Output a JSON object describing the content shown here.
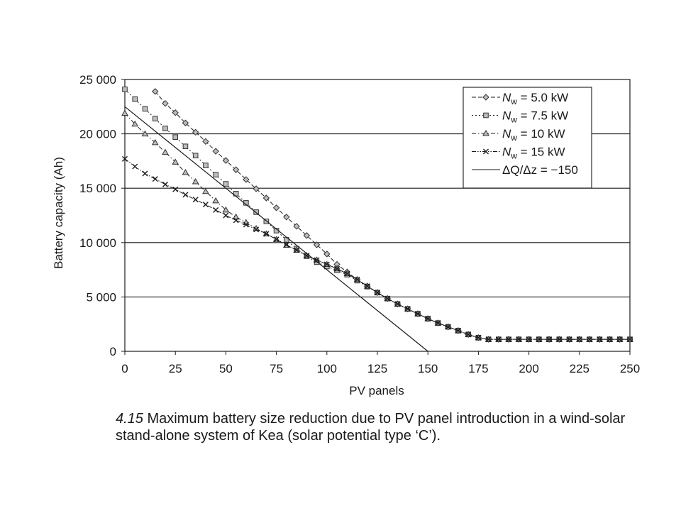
{
  "chart_data": {
    "type": "line",
    "xlabel": "PV panels",
    "ylabel": "Battery capacity (Ah)",
    "xlim": [
      0,
      250
    ],
    "ylim": [
      0,
      25000
    ],
    "x_ticks": [
      0,
      25,
      50,
      75,
      100,
      125,
      150,
      175,
      200,
      225,
      250
    ],
    "x_tick_labels": [
      "0",
      "25",
      "50",
      "75",
      "100",
      "125",
      "150",
      "175",
      "200",
      "225",
      "250"
    ],
    "y_ticks": [
      0,
      5000,
      10000,
      15000,
      20000,
      25000
    ],
    "y_tick_labels": [
      "0",
      "5 000",
      "10 000",
      "15 000",
      "20 000",
      "25 000"
    ],
    "grid": "horizontal",
    "legend_position": "top-right",
    "series": [
      {
        "name": "Nw = 5.0 kW",
        "name_parts": {
          "var": "N",
          "sub": "w",
          "rest": " = 5.0 kW"
        },
        "marker": "diamond",
        "dash": "dashed",
        "x": [
          15,
          20,
          25,
          30,
          35,
          40,
          45,
          50,
          55,
          60,
          65,
          70,
          75,
          80,
          85,
          90,
          95,
          100,
          105,
          110,
          115,
          120,
          125,
          130,
          135,
          140,
          145,
          150,
          155,
          160,
          165,
          170,
          175,
          180,
          185,
          190,
          195,
          200,
          205,
          210,
          215,
          220,
          225,
          230,
          235,
          240,
          245,
          250
        ],
        "values": [
          23900,
          22800,
          21950,
          21000,
          20150,
          19300,
          18400,
          17550,
          16700,
          15800,
          14950,
          14100,
          13200,
          12350,
          11500,
          10650,
          9800,
          8950,
          8000,
          7300,
          6600,
          6000,
          5400,
          4850,
          4350,
          3900,
          3450,
          3000,
          2600,
          2250,
          1900,
          1550,
          1250,
          1100,
          1100,
          1100,
          1100,
          1100,
          1100,
          1100,
          1100,
          1100,
          1100,
          1100,
          1100,
          1100,
          1100,
          1100
        ]
      },
      {
        "name": "Nw = 7.5 kW",
        "name_parts": {
          "var": "N",
          "sub": "w",
          "rest": " = 7.5 kW"
        },
        "marker": "square",
        "dash": "dotted",
        "x": [
          0,
          5,
          10,
          15,
          20,
          25,
          30,
          35,
          40,
          45,
          50,
          55,
          60,
          65,
          70,
          75,
          80,
          85,
          90,
          95,
          100,
          105,
          110,
          115,
          120,
          125,
          130,
          135,
          140,
          145,
          150,
          155,
          160,
          165,
          170,
          175,
          180,
          185,
          190,
          195,
          200,
          205,
          210,
          215,
          220,
          225,
          230,
          235,
          240,
          245,
          250
        ],
        "values": [
          24100,
          23200,
          22300,
          21400,
          20500,
          19700,
          18850,
          18000,
          17100,
          16250,
          15400,
          14500,
          13650,
          12800,
          11950,
          11100,
          10250,
          9450,
          8750,
          8200,
          7800,
          7450,
          7050,
          6500,
          5950,
          5400,
          4850,
          4350,
          3900,
          3450,
          3000,
          2600,
          2250,
          1900,
          1550,
          1250,
          1100,
          1100,
          1100,
          1100,
          1100,
          1100,
          1100,
          1100,
          1100,
          1100,
          1100,
          1100,
          1100,
          1100,
          1100
        ]
      },
      {
        "name": "Nw = 10 kW",
        "name_parts": {
          "var": "N",
          "sub": "w",
          "rest": " = 10 kW"
        },
        "marker": "triangle",
        "dash": "dashdot",
        "x": [
          0,
          5,
          10,
          15,
          20,
          25,
          30,
          35,
          40,
          45,
          50,
          55,
          60,
          65,
          70,
          75,
          80,
          85,
          90,
          95,
          100,
          105,
          110,
          115,
          120,
          125,
          130,
          135,
          140,
          145,
          150,
          155,
          160,
          165,
          170,
          175,
          180,
          185,
          190,
          195,
          200,
          205,
          210,
          215,
          220,
          225,
          230,
          235,
          240,
          245,
          250
        ],
        "values": [
          21900,
          20900,
          20000,
          19200,
          18300,
          17400,
          16450,
          15600,
          14700,
          13850,
          13000,
          12350,
          11850,
          11300,
          10800,
          10300,
          9750,
          9300,
          8800,
          8400,
          8000,
          7600,
          7150,
          6600,
          6000,
          5400,
          4850,
          4350,
          3900,
          3450,
          3000,
          2600,
          2250,
          1900,
          1550,
          1250,
          1100,
          1100,
          1100,
          1100,
          1100,
          1100,
          1100,
          1100,
          1100,
          1100,
          1100,
          1100,
          1100,
          1100,
          1100
        ]
      },
      {
        "name": "Nw = 15 kW",
        "name_parts": {
          "var": "N",
          "sub": "w",
          "rest": " = 15 kW"
        },
        "marker": "x",
        "dash": "dashdotdot",
        "x": [
          0,
          5,
          10,
          15,
          20,
          25,
          30,
          35,
          40,
          45,
          50,
          55,
          60,
          65,
          70,
          75,
          80,
          85,
          90,
          95,
          100,
          105,
          110,
          115,
          120,
          125,
          130,
          135,
          140,
          145,
          150,
          155,
          160,
          165,
          170,
          175,
          180,
          185,
          190,
          195,
          200,
          205,
          210,
          215,
          220,
          225,
          230,
          235,
          240,
          245,
          250
        ],
        "values": [
          17700,
          17000,
          16350,
          15850,
          15350,
          14900,
          14400,
          13950,
          13500,
          13000,
          12500,
          12050,
          11650,
          11200,
          10800,
          10300,
          9800,
          9300,
          8800,
          8400,
          8000,
          7600,
          7150,
          6600,
          6000,
          5400,
          4850,
          4350,
          3900,
          3450,
          3000,
          2600,
          2250,
          1900,
          1550,
          1250,
          1100,
          1100,
          1100,
          1100,
          1100,
          1100,
          1100,
          1100,
          1100,
          1100,
          1100,
          1100,
          1100,
          1100,
          1100
        ]
      },
      {
        "name": "ΔQ/Δz = −150",
        "name_parts": {
          "var": "",
          "sub": "",
          "rest": "ΔQ/Δz = −150"
        },
        "marker": "none",
        "dash": "solid",
        "x": [
          0,
          150
        ],
        "values": [
          22500,
          0
        ]
      }
    ]
  },
  "caption": {
    "figure_number": "4.15",
    "text": " Maximum battery size reduction due to PV panel introduction in a wind-solar stand-alone system of Kea (solar potential type ‘C’)."
  }
}
